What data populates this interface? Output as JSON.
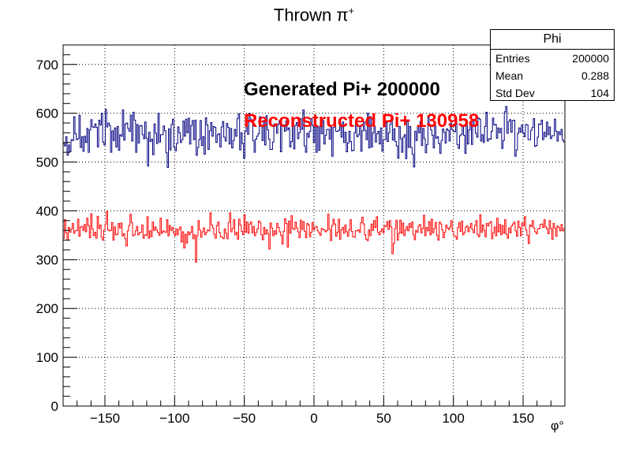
{
  "title": {
    "main": "Thrown π",
    "sup": "+"
  },
  "statbox": {
    "title": "Phi",
    "rows": [
      {
        "label": "Entries",
        "value": "200000"
      },
      {
        "label": "Mean",
        "value": "0.288"
      },
      {
        "label": "Std Dev",
        "value": "104"
      }
    ]
  },
  "annotations": {
    "generated": "Generated Pi+ 200000",
    "reconstructed": "Reconstructed Pi+ 130958"
  },
  "xunit": "φ°",
  "chart_data": {
    "type": "histogram",
    "title": "Thrown π+",
    "xlabel": "φ°",
    "ylabel": "",
    "xlim": [
      -180,
      180
    ],
    "ylim": [
      0,
      740
    ],
    "xticks": [
      -150,
      -100,
      -50,
      0,
      50,
      100,
      150
    ],
    "yticks": [
      0,
      100,
      200,
      300,
      400,
      500,
      600,
      700
    ],
    "grid": true,
    "bin_width": 1,
    "series": [
      {
        "name": "Generated Pi+ 200000",
        "color": "#000080",
        "values": [
          538,
          533,
          552,
          514,
          535,
          521,
          546,
          544,
          593,
          558,
          546,
          548,
          596,
          530,
          552,
          522,
          553,
          540,
          569,
          520,
          566,
          587,
          572,
          571,
          578,
          571,
          531,
          586,
          576,
          600,
          541,
          535,
          608,
          572,
          580,
          575,
          520,
          564,
          544,
          570,
          531,
          573,
          524,
          556,
          553,
          607,
          545,
          578,
          580,
          569,
          563,
          596,
          543,
          602,
          586,
          520,
          577,
          539,
          574,
          575,
          556,
          548,
          582,
          549,
          492,
          561,
          542,
          547,
          515,
          578,
          559,
          538,
          600,
          541,
          556,
          556,
          574,
          564,
          519,
          489,
          568,
          525,
          577,
          588,
          530,
          523,
          538,
          572,
          560,
          540,
          546,
          584,
          553,
          588,
          560,
          590,
          537,
          575,
          585,
          546,
          586,
          514,
          530,
          546,
          585,
          534,
          552,
          516,
          591,
          576,
          526,
          564,
          581,
          553,
          573,
          571,
          540,
          556,
          558,
          531,
          572,
          583,
          551,
          543,
          579,
          571,
          537,
          569,
          529,
          544,
          567,
          553,
          589,
          599,
          525,
          560,
          538,
          508,
          563,
          583,
          557,
          600,
          588,
          583,
          544,
          520,
          547,
          553,
          558,
          593,
          573,
          544,
          585,
          535,
          595,
          566,
          547,
          526,
          526,
          541,
          578,
          578,
          559,
          577,
          585,
          521,
          575,
          576,
          563,
          584,
          566,
          570,
          531,
          542,
          588,
          527,
          575,
          581,
          548,
          560,
          589,
          567,
          607,
          533,
          520,
          559,
          551,
          563,
          589,
          575,
          540,
          586,
          520,
          572,
          524,
          575,
          558,
          585,
          537,
          555,
          567,
          567,
          547,
          575,
          512,
          571,
          579,
          563,
          563,
          565,
          573,
          551,
          582,
          540,
          561,
          521,
          539,
          563,
          542,
          523,
          524,
          560,
          581,
          552,
          556,
          573,
          522,
          564,
          582,
          565,
          546,
          600,
          529,
          593,
          531,
          560,
          573,
          541,
          558,
          563,
          537,
          570,
          522,
          546,
          546,
          581,
          542,
          560,
          577,
          588,
          545,
          568,
          542,
          533,
          508,
          573,
          548,
          520,
          551,
          556,
          507,
          583,
          530,
          573,
          530,
          516,
          490,
          563,
          544,
          573,
          560,
          583,
          534,
          569,
          548,
          519,
          536,
          592,
          577,
          566,
          555,
          529,
          574,
          549,
          552,
          538,
          518,
          544,
          568,
          561,
          539,
          568,
          565,
          543,
          580,
          567,
          563,
          562,
          580,
          536,
          528,
          554,
          557,
          574,
          555,
          518,
          576,
          537,
          566,
          579,
          536,
          587,
          575,
          559,
          551,
          590,
          588,
          543,
          556,
          540,
          573,
          602,
          543,
          548,
          547,
          563,
          590,
          576,
          577,
          549,
          570,
          560,
          569,
          528,
          544,
          603,
          614,
          559,
          583,
          587,
          561,
          585,
          586,
          512,
          525,
          559,
          570,
          561,
          576,
          560,
          552,
          577,
          576,
          546,
          546,
          565,
          571,
          589,
          532,
          534,
          551,
          578,
          577,
          586,
          546,
          561,
          552,
          582,
          556,
          572,
          548,
          554,
          554,
          588,
          563,
          543,
          562,
          556,
          567,
          545,
          541
        ]
      },
      {
        "name": "Reconstructed Pi+ 130958",
        "color": "#ff0000",
        "values": [
          344,
          382,
          355,
          340,
          366,
          356,
          363,
          374,
          354,
          359,
          360,
          383,
          348,
          367,
          368,
          360,
          372,
          357,
          385,
          370,
          345,
          394,
          363,
          349,
          356,
          344,
          389,
          364,
          371,
          346,
          340,
          361,
          373,
          399,
          361,
          359,
          360,
          376,
          340,
          367,
          351,
          352,
          374,
          365,
          375,
          349,
          353,
          343,
          328,
          359,
          370,
          393,
          376,
          349,
          351,
          359,
          368,
          351,
          355,
          356,
          371,
          344,
          351,
          350,
          388,
          344,
          359,
          347,
          377,
          360,
          367,
          361,
          356,
          350,
          385,
          354,
          359,
          357,
          356,
          382,
          349,
          370,
          360,
          366,
          355,
          349,
          363,
          351,
          362,
          367,
          336,
          357,
          324,
          352,
          334,
          357,
          351,
          356,
          368,
          343,
          351,
          295,
          349,
          380,
          361,
          346,
          357,
          365,
          351,
          356,
          361,
          359,
          396,
          371,
          365,
          352,
          344,
          370,
          377,
          355,
          347,
          346,
          343,
          363,
          354,
          343,
          376,
          396,
          357,
          364,
          382,
          351,
          356,
          342,
          383,
          371,
          358,
          351,
          392,
          356,
          377,
          354,
          373,
          377,
          355,
          368,
          349,
          356,
          363,
          379,
          376,
          351,
          341,
          366,
          352,
          361,
          353,
          322,
          375,
          365,
          349,
          359,
          352,
          374,
          366,
          357,
          350,
          332,
          358,
          384,
          374,
          326,
          379,
          354,
          390,
          364,
          362,
          377,
          365,
          357,
          345,
          381,
          362,
          378,
          358,
          345,
          374,
          371,
          347,
          356,
          376,
          361,
          367,
          368,
          359,
          355,
          350,
          364,
          362,
          361,
          357,
          360,
          393,
          362,
          339,
          370,
          383,
          373,
          348,
          356,
          383,
          342,
          361,
          366,
          354,
          371,
          357,
          348,
          361,
          382,
          358,
          347,
          346,
          359,
          359,
          361,
          356,
          376,
          387,
          373,
          351,
          342,
          339,
          361,
          349,
          373,
          360,
          380,
          366,
          388,
          356,
          351,
          358,
          363,
          355,
          370,
          368,
          378,
          362,
          380,
          367,
          312,
          333,
          364,
          381,
          340,
          354,
          381,
          354,
          375,
          349,
          361,
          368,
          359,
          374,
          366,
          377,
          351,
          341,
          360,
          356,
          369,
          372,
          355,
          364,
          391,
          349,
          366,
          359,
          378,
          351,
          383,
          355,
          364,
          376,
          350,
          340,
          377,
          373,
          361,
          345,
          356,
          371,
          365,
          362,
          367,
          380,
          358,
          349,
          348,
          342,
          366,
          376,
          358,
          379,
          351,
          356,
          367,
          369,
          357,
          366,
          374,
          362,
          355,
          370,
          380,
          351,
          347,
          392,
          356,
          371,
          360,
          347,
          374,
          369,
          375,
          378,
          343,
          355,
          367,
          349,
          385,
          357,
          372,
          351,
          370,
          354,
          382,
          352,
          344,
          365,
          355,
          369,
          373,
          377,
          359,
          348,
          379,
          366,
          349,
          375,
          369,
          388,
          361,
          350,
          333,
          371,
          368,
          380,
          365,
          357,
          353,
          363,
          364,
          372,
          373,
          366,
          382,
          367,
          363,
          353,
          380,
          364,
          342,
          374,
          365,
          348,
          369,
          366,
          359,
          372,
          359,
          364
        ]
      }
    ]
  }
}
